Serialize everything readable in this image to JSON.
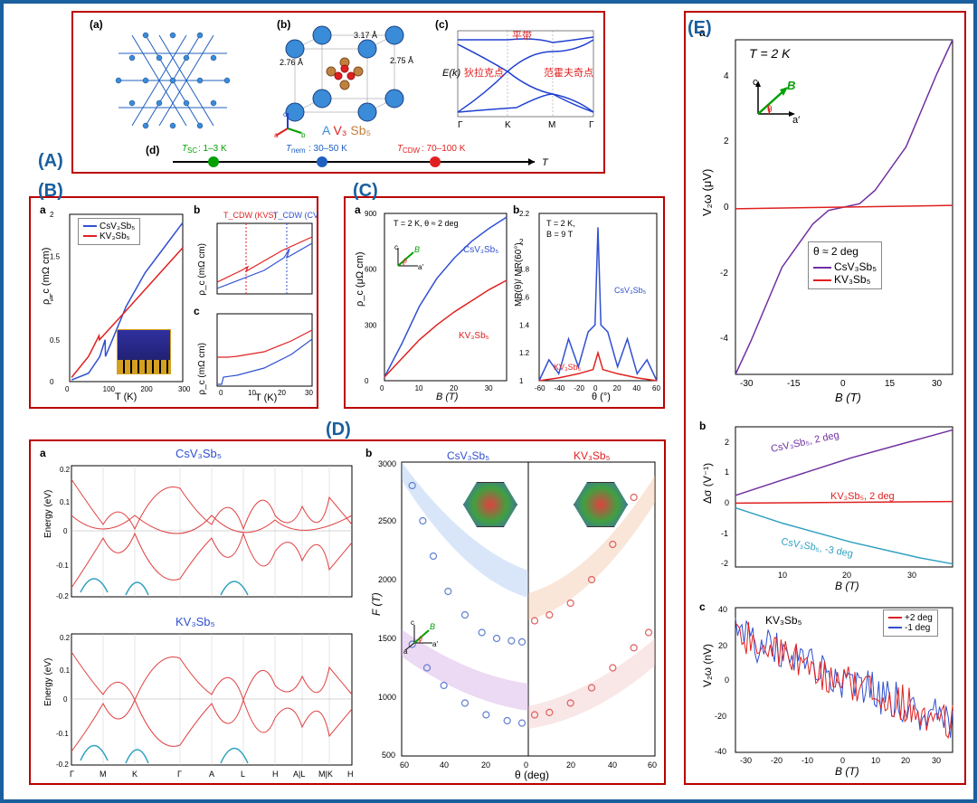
{
  "panelA": {
    "label": "(A)",
    "sub_a": "(a)",
    "sub_b": "(b)",
    "sub_c": "(c)",
    "sub_d": "(d)",
    "formula": "A V₃ Sb₅",
    "formula_colors": [
      "#3a8bd8",
      "#e02020",
      "#c08040"
    ],
    "bond1": "2.76 Å",
    "bond2": "3.17 Å",
    "bond3": "2.75 Å",
    "axes": [
      "a",
      "b",
      "c"
    ],
    "axes_colors": [
      "#e02020",
      "#00a000",
      "#2040d0"
    ],
    "bandplot": {
      "ylabel": "E(k)",
      "xticks": [
        "Γ",
        "K",
        "M",
        "Γ"
      ],
      "labels": [
        "平带",
        "狄拉克点",
        "范霍夫奇点"
      ],
      "label_color": "#e02020",
      "line_color": "#2040d0"
    },
    "timeline": {
      "tsc": {
        "label": "T_SC: 1–3 K",
        "color": "#00a000",
        "x": 0.15
      },
      "tnem": {
        "label": "T_nem: 30–50 K",
        "color": "#2060c0",
        "x": 0.4
      },
      "tcdw": {
        "label": "T_CDW: 70–100 K",
        "color": "#e02020",
        "x": 0.7
      },
      "axis_label": "T"
    }
  },
  "panelB": {
    "label": "(B)",
    "sub_a": "a",
    "sub_b": "b",
    "sub_c": "c",
    "chart_a": {
      "ylabel": "ρ_c (mΩ cm)",
      "xlabel": "T (K)",
      "xlim": [
        0,
        300
      ],
      "ylim": [
        0,
        2.0
      ],
      "xticks": [
        0,
        100,
        200,
        300
      ],
      "yticks": [
        0.0,
        0.5,
        1.0,
        1.5,
        2.0
      ],
      "series": [
        {
          "name": "CsV₃Sb₅",
          "color": "#3050d0",
          "data": [
            [
              5,
              0.02
            ],
            [
              50,
              0.1
            ],
            [
              80,
              0.3
            ],
            [
              94,
              0.5
            ],
            [
              95,
              0.3
            ],
            [
              150,
              0.9
            ],
            [
              200,
              1.3
            ],
            [
              250,
              1.6
            ],
            [
              300,
              1.9
            ]
          ]
        },
        {
          "name": "KV₃Sb₅",
          "color": "#e02020",
          "data": [
            [
              5,
              0.05
            ],
            [
              50,
              0.3
            ],
            [
              78,
              0.55
            ],
            [
              79,
              0.5
            ],
            [
              150,
              0.85
            ],
            [
              200,
              1.1
            ],
            [
              250,
              1.35
            ],
            [
              300,
              1.6
            ]
          ]
        }
      ]
    },
    "chart_b": {
      "ylabel": "ρ_c (mΩ cm)",
      "xlim": [
        70,
        105
      ],
      "ylim": [
        0.4,
        0.8
      ],
      "annotations": [
        {
          "text": "T_CDW (KVS)",
          "color": "#e02020",
          "x": 78
        },
        {
          "text": "T_CDW (CVS)",
          "color": "#3050d0",
          "x": 94
        }
      ]
    },
    "chart_c": {
      "ylabel": "ρ_c (mΩ cm)",
      "xlabel": "T (K)",
      "xlim": [
        0,
        35
      ],
      "ylim": [
        0,
        0.2
      ],
      "xticks": [
        0,
        10,
        20,
        30
      ]
    }
  },
  "panelC": {
    "label": "(C)",
    "sub_a": "a",
    "sub_b": "b",
    "chart_a": {
      "ylabel": "ρ_c (μΩ cm)",
      "xlabel": "B (T)",
      "xlim": [
        0,
        35
      ],
      "ylim": [
        0,
        900
      ],
      "xticks": [
        0,
        10,
        20,
        30
      ],
      "yticks": [
        0,
        300,
        600,
        900
      ],
      "cond": "T = 2 K, θ ≈ 2 deg",
      "series": [
        {
          "name": "CsV₃Sb₅",
          "color": "#3050d0",
          "data": [
            [
              0,
              20
            ],
            [
              5,
              200
            ],
            [
              10,
              400
            ],
            [
              15,
              550
            ],
            [
              20,
              660
            ],
            [
              25,
              750
            ],
            [
              30,
              820
            ],
            [
              35,
              880
            ]
          ]
        },
        {
          "name": "KV₃Sb₅",
          "color": "#e02020",
          "data": [
            [
              0,
              20
            ],
            [
              5,
              120
            ],
            [
              10,
              220
            ],
            [
              15,
              300
            ],
            [
              20,
              370
            ],
            [
              25,
              430
            ],
            [
              30,
              490
            ],
            [
              35,
              540
            ]
          ]
        }
      ]
    },
    "chart_b": {
      "ylabel": "MR(θ)/ MR(60°)",
      "xlabel": "θ (°)",
      "xlim": [
        -60,
        60
      ],
      "ylim": [
        1.0,
        2.2
      ],
      "xticks": [
        -60,
        -40,
        -20,
        0,
        20,
        40,
        60
      ],
      "yticks": [
        1.0,
        1.2,
        1.4,
        1.6,
        1.8,
        2.0,
        2.2
      ],
      "cond": "T = 2 K,\nB = 9 T",
      "series": [
        {
          "name": "CsV₃Sb₅",
          "color": "#3050d0",
          "data": [
            [
              -60,
              1.0
            ],
            [
              -50,
              1.15
            ],
            [
              -40,
              1.05
            ],
            [
              -30,
              1.3
            ],
            [
              -20,
              1.1
            ],
            [
              -10,
              1.35
            ],
            [
              -3,
              1.4
            ],
            [
              0,
              2.1
            ],
            [
              3,
              1.4
            ],
            [
              10,
              1.35
            ],
            [
              20,
              1.1
            ],
            [
              30,
              1.3
            ],
            [
              40,
              1.05
            ],
            [
              50,
              1.15
            ],
            [
              60,
              1.0
            ]
          ]
        },
        {
          "name": "KV₃Sb₅",
          "color": "#e02020",
          "data": [
            [
              -60,
              1.0
            ],
            [
              -40,
              1.02
            ],
            [
              -20,
              1.05
            ],
            [
              -5,
              1.08
            ],
            [
              0,
              1.2
            ],
            [
              5,
              1.08
            ],
            [
              20,
              1.05
            ],
            [
              40,
              1.02
            ],
            [
              60,
              1.0
            ]
          ]
        }
      ]
    }
  },
  "panelD": {
    "label": "(D)",
    "sub_a": "a",
    "sub_b": "b",
    "bands": {
      "ylabel": "Energy (eV)",
      "ylim": [
        -0.2,
        0.2
      ],
      "yticks": [
        -0.2,
        -0.1,
        0,
        0.1,
        0.2
      ],
      "xticks": [
        "Γ",
        "M",
        "K",
        "Γ",
        "A",
        "L",
        "H",
        "A|L",
        "M|K",
        "H"
      ],
      "title1": "CsV₃Sb₅",
      "title2": "KV₃Sb₅",
      "colors": [
        "#e04040",
        "#30a0c0"
      ]
    },
    "freq": {
      "ylabel": "F (T)",
      "xlabel": "θ (deg)",
      "xlim": [
        60,
        60
      ],
      "ylim": [
        500,
        3000
      ],
      "xticks": [
        60,
        40,
        20,
        0,
        20,
        40,
        60
      ],
      "yticks": [
        500,
        1000,
        1500,
        2000,
        2500,
        3000
      ],
      "title1": "CsV₃Sb₅",
      "title2": "KV₃Sb₅",
      "colors": [
        "#6080d0",
        "#e06060"
      ],
      "band_colors": [
        "#a0c0f0",
        "#d0a0e0",
        "#f0c0a0",
        "#f0c0c0"
      ]
    }
  },
  "panelE": {
    "label": "(E)",
    "sub_a": "a",
    "sub_b": "b",
    "sub_c": "c",
    "chart_a": {
      "ylabel": "V₂ω (μV)",
      "xlabel": "B (T)",
      "xlim": [
        -35,
        35
      ],
      "ylim": [
        -5,
        5
      ],
      "xticks": [
        -30,
        -15,
        0,
        15,
        30
      ],
      "yticks": [
        -4,
        -2,
        0,
        2,
        4
      ],
      "cond": "T = 2 K",
      "angle": "θ ≈ 2 deg",
      "inset_axes": {
        "c": "c",
        "a": "a′",
        "B": "B",
        "theta": "θ"
      },
      "series": [
        {
          "name": "CsV₃Sb₅",
          "color": "#7030a0",
          "data": [
            [
              -35,
              -5
            ],
            [
              -30,
              -4
            ],
            [
              -20,
              -1.8
            ],
            [
              -10,
              -0.5
            ],
            [
              -5,
              -0.1
            ],
            [
              0,
              0
            ],
            [
              5,
              0.1
            ],
            [
              10,
              0.5
            ],
            [
              20,
              1.8
            ],
            [
              30,
              4
            ],
            [
              35,
              5
            ]
          ]
        },
        {
          "name": "KV₃Sb₅",
          "color": "#e02020",
          "data": [
            [
              -35,
              -0.05
            ],
            [
              0,
              0
            ],
            [
              35,
              0.05
            ]
          ]
        }
      ]
    },
    "chart_b": {
      "ylabel": "Δσ (V⁻¹)",
      "xlabel": "B (T)",
      "xlim": [
        3,
        35
      ],
      "ylim": [
        -2,
        2.5
      ],
      "xticks": [
        10,
        20,
        30
      ],
      "yticks": [
        -2,
        -1,
        0,
        1,
        2
      ],
      "series": [
        {
          "name": "CsV₃Sb₅, 2 deg",
          "color": "#7030a0",
          "data": [
            [
              3,
              0.3
            ],
            [
              10,
              0.8
            ],
            [
              20,
              1.5
            ],
            [
              30,
              2.1
            ],
            [
              35,
              2.4
            ]
          ]
        },
        {
          "name": "KV₃Sb₅, 2 deg",
          "color": "#e02020",
          "data": [
            [
              3,
              0.05
            ],
            [
              35,
              0.1
            ]
          ]
        },
        {
          "name": "CsV₃Sb₅, -3 deg",
          "color": "#30a0c0",
          "data": [
            [
              3,
              -0.1
            ],
            [
              10,
              -0.6
            ],
            [
              20,
              -1.2
            ],
            [
              30,
              -1.7
            ],
            [
              35,
              -1.9
            ]
          ]
        }
      ]
    },
    "chart_c": {
      "ylabel": "V₂ω (nV)",
      "xlabel": "B (T)",
      "xlim": [
        -35,
        35
      ],
      "ylim": [
        -40,
        40
      ],
      "xticks": [
        -30,
        -20,
        -10,
        0,
        10,
        20,
        30
      ],
      "yticks": [
        -40,
        -20,
        0,
        20,
        40
      ],
      "title": "KV₃Sb₅",
      "series": [
        {
          "name": "+2 deg",
          "color": "#e02020"
        },
        {
          "name": "-1 deg",
          "color": "#3050d0"
        }
      ]
    }
  }
}
